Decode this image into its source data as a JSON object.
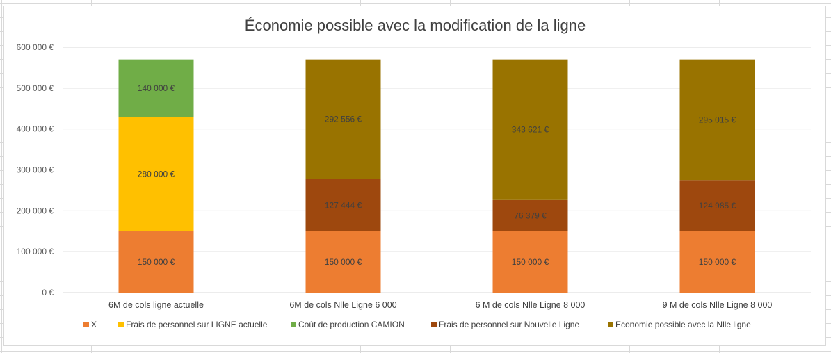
{
  "chart_data": {
    "type": "bar",
    "stacked": true,
    "title": "Économie possible avec la modification de la ligne",
    "xlabel": "",
    "ylabel": "",
    "ylim": [
      0,
      600000
    ],
    "ytick_labels": [
      "0 €",
      "100 000 €",
      "200 000 €",
      "300 000 €",
      "400 000 €",
      "500 000 €",
      "600 000 €"
    ],
    "grid": true,
    "legend_position": "bottom",
    "categories": [
      "6M de cols ligne actuelle",
      "6M de cols Nlle Ligne 6 000",
      "6 M de cols Nlle Ligne 8 000",
      "9 M de cols Nlle Ligne 8 000"
    ],
    "series": [
      {
        "name": "X",
        "color": "#ED7D31",
        "values": [
          150000,
          150000,
          150000,
          150000
        ],
        "labels": [
          "150 000 €",
          "150 000 €",
          "150 000 €",
          "150 000 €"
        ]
      },
      {
        "name": "Frais de personnel sur LIGNE actuelle",
        "color": "#FFC000",
        "values": [
          280000,
          0,
          0,
          0
        ],
        "labels": [
          "280 000 €",
          "",
          "",
          ""
        ]
      },
      {
        "name": "Coût de production CAMION",
        "color": "#70AD47",
        "values": [
          140000,
          0,
          0,
          0
        ],
        "labels": [
          "140 000 €",
          "",
          "",
          ""
        ]
      },
      {
        "name": "Frais de personnel sur Nouvelle Ligne",
        "color": "#9E480E",
        "values": [
          0,
          127444,
          76379,
          124985
        ],
        "labels": [
          "",
          "127 444 €",
          "76 379 €",
          "124 985 €"
        ]
      },
      {
        "name": "Economie possible avec la Nlle ligne",
        "color": "#997300",
        "values": [
          0,
          292556,
          343621,
          295015
        ],
        "labels": [
          "",
          "292 556 €",
          "343 621 €",
          "295 015 €"
        ]
      }
    ]
  }
}
